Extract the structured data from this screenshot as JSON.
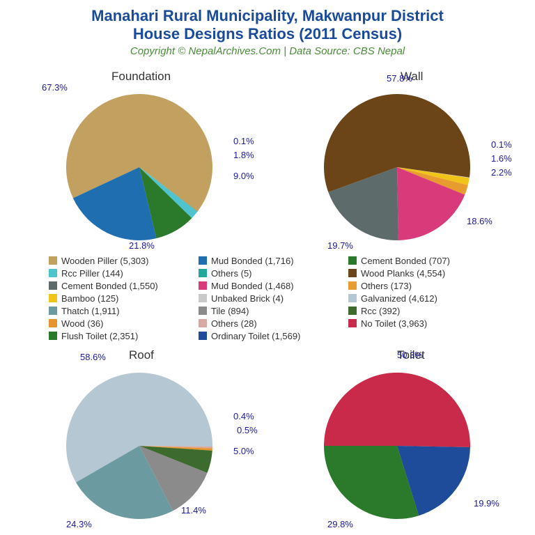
{
  "title_line1": "Manahari Rural Municipality, Makwanpur District",
  "title_line2": "House Designs Ratios (2011 Census)",
  "subtitle": "Copyright © NepalArchives.Com | Data Source: CBS Nepal",
  "label_color": "#1a1a9b",
  "title_color": "#1a4b9b",
  "subtitle_color": "#4a8b3a",
  "charts": {
    "foundation": {
      "title": "Foundation",
      "slices": [
        {
          "label": "Wooden Piller",
          "count": 5303,
          "pct": 67.3,
          "color": "#c2a060"
        },
        {
          "label": "Others",
          "count": 5,
          "pct": 0.1,
          "color": "#1fa89b"
        },
        {
          "label": "Rcc Piller",
          "count": 144,
          "pct": 1.8,
          "color": "#4fc4cf"
        },
        {
          "label": "Cement Bonded",
          "count": 707,
          "pct": 9.0,
          "color": "#2b7a2b"
        },
        {
          "label": "Mud Bonded",
          "count": 1716,
          "pct": 21.8,
          "color": "#1f6fb0"
        }
      ]
    },
    "wall": {
      "title": "Wall",
      "slices": [
        {
          "label": "Wood Planks",
          "count": 4554,
          "pct": 57.8,
          "color": "#6b4518"
        },
        {
          "label": "Unbaked Brick",
          "count": 4,
          "pct": 0.1,
          "color": "#c9c9c9"
        },
        {
          "label": "Bamboo",
          "count": 125,
          "pct": 1.6,
          "color": "#f0c419"
        },
        {
          "label": "Others",
          "count": 173,
          "pct": 2.2,
          "color": "#e89b2e"
        },
        {
          "label": "Mud Bonded",
          "count": 1468,
          "pct": 18.6,
          "color": "#d93a7a"
        },
        {
          "label": "Cement Bonded",
          "count": 1550,
          "pct": 19.7,
          "color": "#5e6b6b"
        }
      ]
    },
    "roof": {
      "title": "Roof",
      "slices": [
        {
          "label": "Galvanized",
          "count": 4612,
          "pct": 58.6,
          "color": "#b5c7d3"
        },
        {
          "label": "Others",
          "count": 28,
          "pct": 0.4,
          "color": "#d9a8a0"
        },
        {
          "label": "Wood",
          "count": 36,
          "pct": 0.5,
          "color": "#e8952e"
        },
        {
          "label": "Rcc",
          "count": 392,
          "pct": 5.0,
          "color": "#3d6b2d"
        },
        {
          "label": "Tile",
          "count": 894,
          "pct": 11.4,
          "color": "#8b8b8b"
        },
        {
          "label": "Thatch",
          "count": 1911,
          "pct": 24.3,
          "color": "#6b9ba0"
        }
      ]
    },
    "toilet": {
      "title": "Toilet",
      "slices": [
        {
          "label": "No Toilet",
          "count": 3963,
          "pct": 50.3,
          "color": "#c92a4a"
        },
        {
          "label": "Ordinary Toilet",
          "count": 1569,
          "pct": 19.9,
          "color": "#1f4b9b"
        },
        {
          "label": "Flush Toilet",
          "count": 2351,
          "pct": 29.8,
          "color": "#2b7a2b"
        }
      ]
    }
  },
  "legend_cols": [
    [
      {
        "label": "Wooden Piller (5,303)",
        "color": "#c2a060"
      },
      {
        "label": "Rcc Piller (144)",
        "color": "#4fc4cf"
      },
      {
        "label": "Cement Bonded (1,550)",
        "color": "#5e6b6b"
      },
      {
        "label": "Bamboo (125)",
        "color": "#f0c419"
      },
      {
        "label": "Thatch (1,911)",
        "color": "#6b9ba0"
      },
      {
        "label": "Wood (36)",
        "color": "#e8952e"
      },
      {
        "label": "Flush Toilet (2,351)",
        "color": "#2b7a2b"
      }
    ],
    [
      {
        "label": "Mud Bonded (1,716)",
        "color": "#1f6fb0"
      },
      {
        "label": "Others (5)",
        "color": "#1fa89b"
      },
      {
        "label": "Mud Bonded (1,468)",
        "color": "#d93a7a"
      },
      {
        "label": "Unbaked Brick (4)",
        "color": "#c9c9c9"
      },
      {
        "label": "Tile (894)",
        "color": "#8b8b8b"
      },
      {
        "label": "Others (28)",
        "color": "#d9a8a0"
      },
      {
        "label": "Ordinary Toilet (1,569)",
        "color": "#1f4b9b"
      }
    ],
    [
      {
        "label": "Cement Bonded (707)",
        "color": "#2b7a2b"
      },
      {
        "label": "Wood Planks (4,554)",
        "color": "#6b4518"
      },
      {
        "label": "Others (173)",
        "color": "#e89b2e"
      },
      {
        "label": "Galvanized (4,612)",
        "color": "#b5c7d3"
      },
      {
        "label": "Rcc (392)",
        "color": "#3d6b2d"
      },
      {
        "label": "No Toilet (3,963)",
        "color": "#c92a4a"
      }
    ]
  ]
}
